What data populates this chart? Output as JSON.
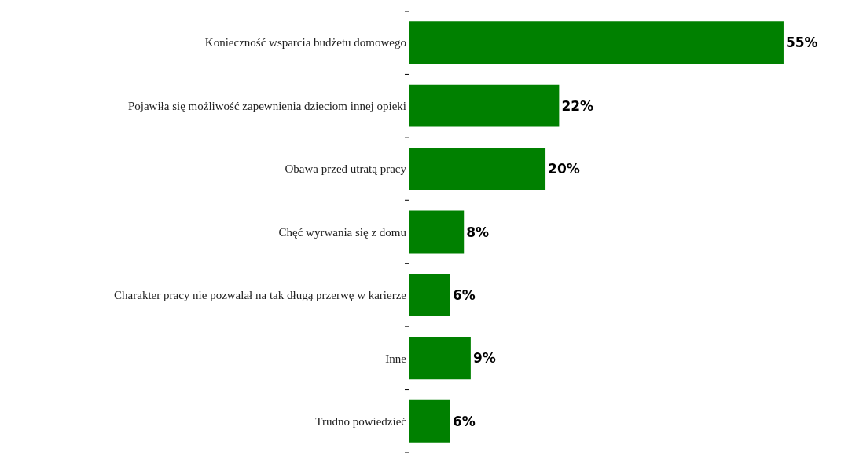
{
  "chart_data": {
    "type": "bar",
    "orientation": "horizontal",
    "categories": [
      "Konieczność wsparcia budżetu domowego",
      "Pojawiła się możliwość zapewnienia dzieciom innej opieki",
      "Obawa przed utratą pracy",
      "Chęć wyrwania się z domu",
      "Charakter pracy nie pozwalał na tak długą przerwę w karierze",
      "Inne",
      "Trudno powiedzieć"
    ],
    "values": [
      55,
      22,
      20,
      8,
      6,
      9,
      6
    ],
    "value_labels": [
      "55%",
      "22%",
      "20%",
      "8%",
      "6%",
      "9%",
      "6%"
    ],
    "color": "#008000",
    "grid": false,
    "legend": false,
    "tick_labels": "y"
  }
}
